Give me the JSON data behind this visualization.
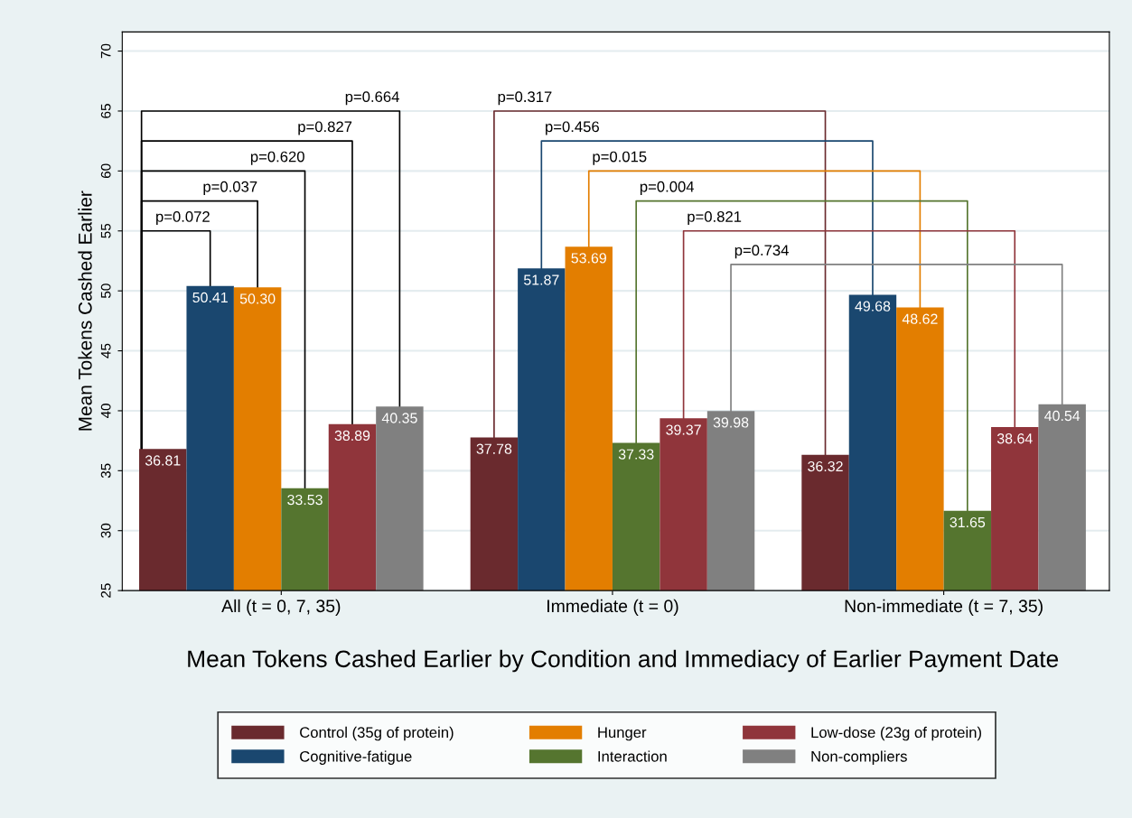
{
  "chart_data": {
    "type": "bar",
    "title": "Mean Tokens Cashed Earlier by Condition and Immediacy of Earlier Payment Date",
    "ylabel": "Mean Tokens Cashed Earlier",
    "categories": [
      "All (t = 0, 7, 35)",
      "Immediate (t = 0)",
      "Non-immediate (t = 7, 35)"
    ],
    "series": [
      {
        "name": "Control (35g of protein)",
        "color": "#6a2a2e",
        "values": [
          36.81,
          37.78,
          36.32
        ],
        "value_labels": [
          "36.81",
          "37.78",
          "36.32"
        ]
      },
      {
        "name": "Cognitive-fatigue",
        "color": "#1a476f",
        "values": [
          50.41,
          51.87,
          49.68
        ],
        "value_labels": [
          "50.41",
          "51.87",
          "49.68"
        ]
      },
      {
        "name": "Hunger",
        "color": "#e37e00",
        "values": [
          50.3,
          53.69,
          48.62
        ],
        "value_labels": [
          "50.30",
          "53.69",
          "48.62"
        ]
      },
      {
        "name": "Interaction",
        "color": "#55752f",
        "values": [
          33.53,
          37.33,
          31.65
        ],
        "value_labels": [
          "33.53",
          "37.33",
          "31.65"
        ]
      },
      {
        "name": "Low-dose (23g of protein)",
        "color": "#90353b",
        "values": [
          38.89,
          39.37,
          38.64
        ],
        "value_labels": [
          "38.89",
          "39.37",
          "38.64"
        ]
      },
      {
        "name": "Non-compliers",
        "color": "#808080",
        "values": [
          40.35,
          39.98,
          40.54
        ],
        "value_labels": [
          "40.35",
          "39.98",
          "40.54"
        ]
      }
    ],
    "ylim": [
      25,
      71.6
    ],
    "yticks": [
      25,
      30,
      35,
      40,
      45,
      50,
      55,
      60,
      65,
      70
    ],
    "grid": "y",
    "legend": "bottom",
    "annotations": [
      "p=0.072",
      "p=0.037",
      "p=0.620",
      "p=0.827",
      "p=0.664",
      "p=0.317",
      "p=0.456",
      "p=0.015",
      "p=0.004",
      "p=0.821",
      "p=0.734"
    ]
  }
}
